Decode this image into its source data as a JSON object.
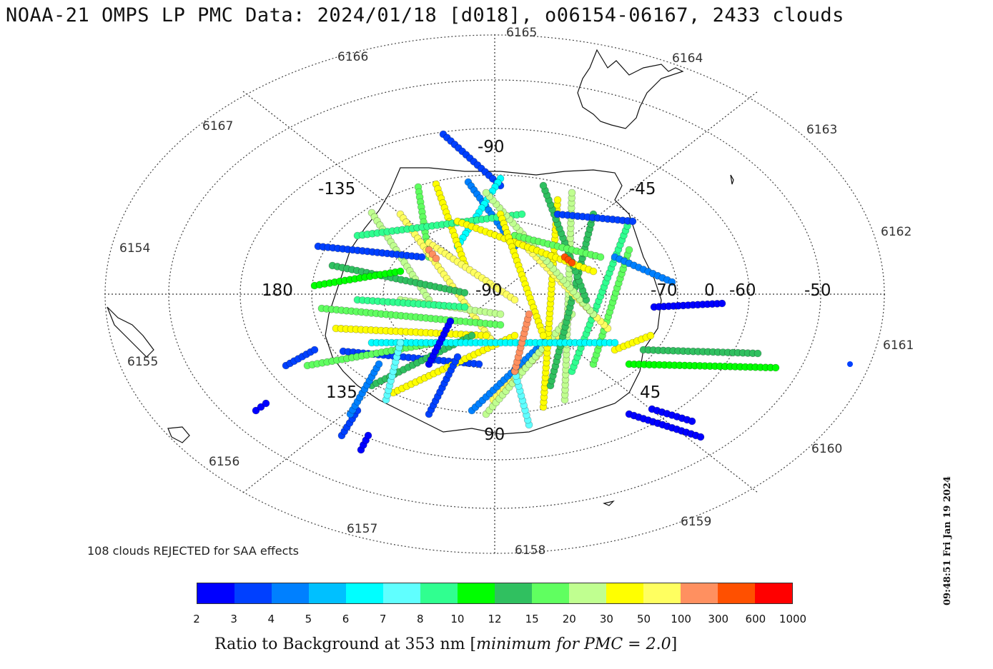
{
  "title": "NOAA-21 OMPS LP PMC Data: 2024/01/18 [d018], o06154-06167, 2433 clouds",
  "rejected_note": "108 clouds REJECTED for SAA effects",
  "timestamp": "09:48:51 Fri Jan 19 2024",
  "orbit_labels": [
    "6154",
    "6155",
    "6156",
    "6157",
    "6158",
    "6159",
    "6160",
    "6161",
    "6162",
    "6163",
    "6164",
    "6165",
    "6166",
    "6167"
  ],
  "lon_labels": [
    "-90",
    "-135",
    "-45",
    "180",
    "-90",
    "-70",
    "0",
    "-60",
    "-50",
    "135",
    "45",
    "90"
  ],
  "colorbar": {
    "colors": [
      "#0000ff",
      "#0040ff",
      "#0080ff",
      "#00c0ff",
      "#00ffff",
      "#60ffff",
      "#30ff90",
      "#00ff00",
      "#30c060",
      "#60ff60",
      "#c0ff90",
      "#ffff00",
      "#ffff60",
      "#ff9060",
      "#ff5000",
      "#ff0000"
    ],
    "ticks": [
      "2",
      "3",
      "4",
      "5",
      "6",
      "7",
      "8",
      "10",
      "12",
      "15",
      "20",
      "30",
      "50",
      "100",
      "300",
      "600",
      "1000"
    ],
    "label_main": "Ratio to Background at 353 nm [",
    "label_italic": "minimum for PMC = 2.0",
    "label_end": "]"
  }
}
